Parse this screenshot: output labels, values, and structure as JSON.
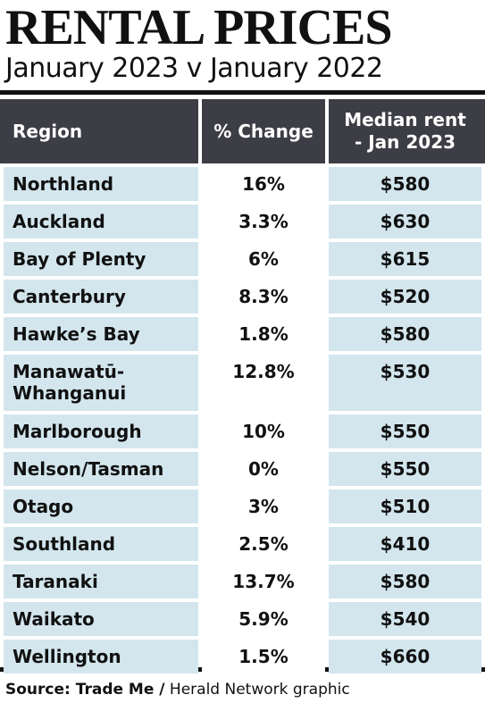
{
  "header": {
    "title": "RENTAL PRICES",
    "subtitle": "January 2023 v January 2022"
  },
  "chart_data": {
    "type": "table",
    "columns": [
      "Region",
      "% Change",
      "Median rent - Jan 2023"
    ],
    "rows": [
      {
        "region": "Northland",
        "change": "16%",
        "rent": "$580"
      },
      {
        "region": "Auckland",
        "change": "3.3%",
        "rent": "$630"
      },
      {
        "region": "Bay of Plenty",
        "change": "6%",
        "rent": "$615"
      },
      {
        "region": "Canterbury",
        "change": "8.3%",
        "rent": "$520"
      },
      {
        "region": "Hawke’s Bay",
        "change": "1.8%",
        "rent": "$580"
      },
      {
        "region": "Manawatū-Whanganui",
        "change": "12.8%",
        "rent": "$530"
      },
      {
        "region": "Marlborough",
        "change": "10%",
        "rent": "$550"
      },
      {
        "region": "Nelson/Tasman",
        "change": "0%",
        "rent": "$550"
      },
      {
        "region": "Otago",
        "change": "3%",
        "rent": "$510"
      },
      {
        "region": "Southland",
        "change": "2.5%",
        "rent": "$410"
      },
      {
        "region": "Taranaki",
        "change": "13.7%",
        "rent": "$580"
      },
      {
        "region": "Waikato",
        "change": "5.9%",
        "rent": "$540"
      },
      {
        "region": "Wellington",
        "change": "1.5%",
        "rent": "$660"
      }
    ]
  },
  "table": {
    "header_region": "Region",
    "header_change": "% Change",
    "header_rent_line1": "Median rent",
    "header_rent_line2": "- Jan 2023"
  },
  "footer": {
    "source_label": "Source: Trade Me /",
    "source_text": "Herald Network graphic"
  },
  "colors": {
    "header_bg": "#3d3e45",
    "row_tint": "#d3e6ee"
  }
}
